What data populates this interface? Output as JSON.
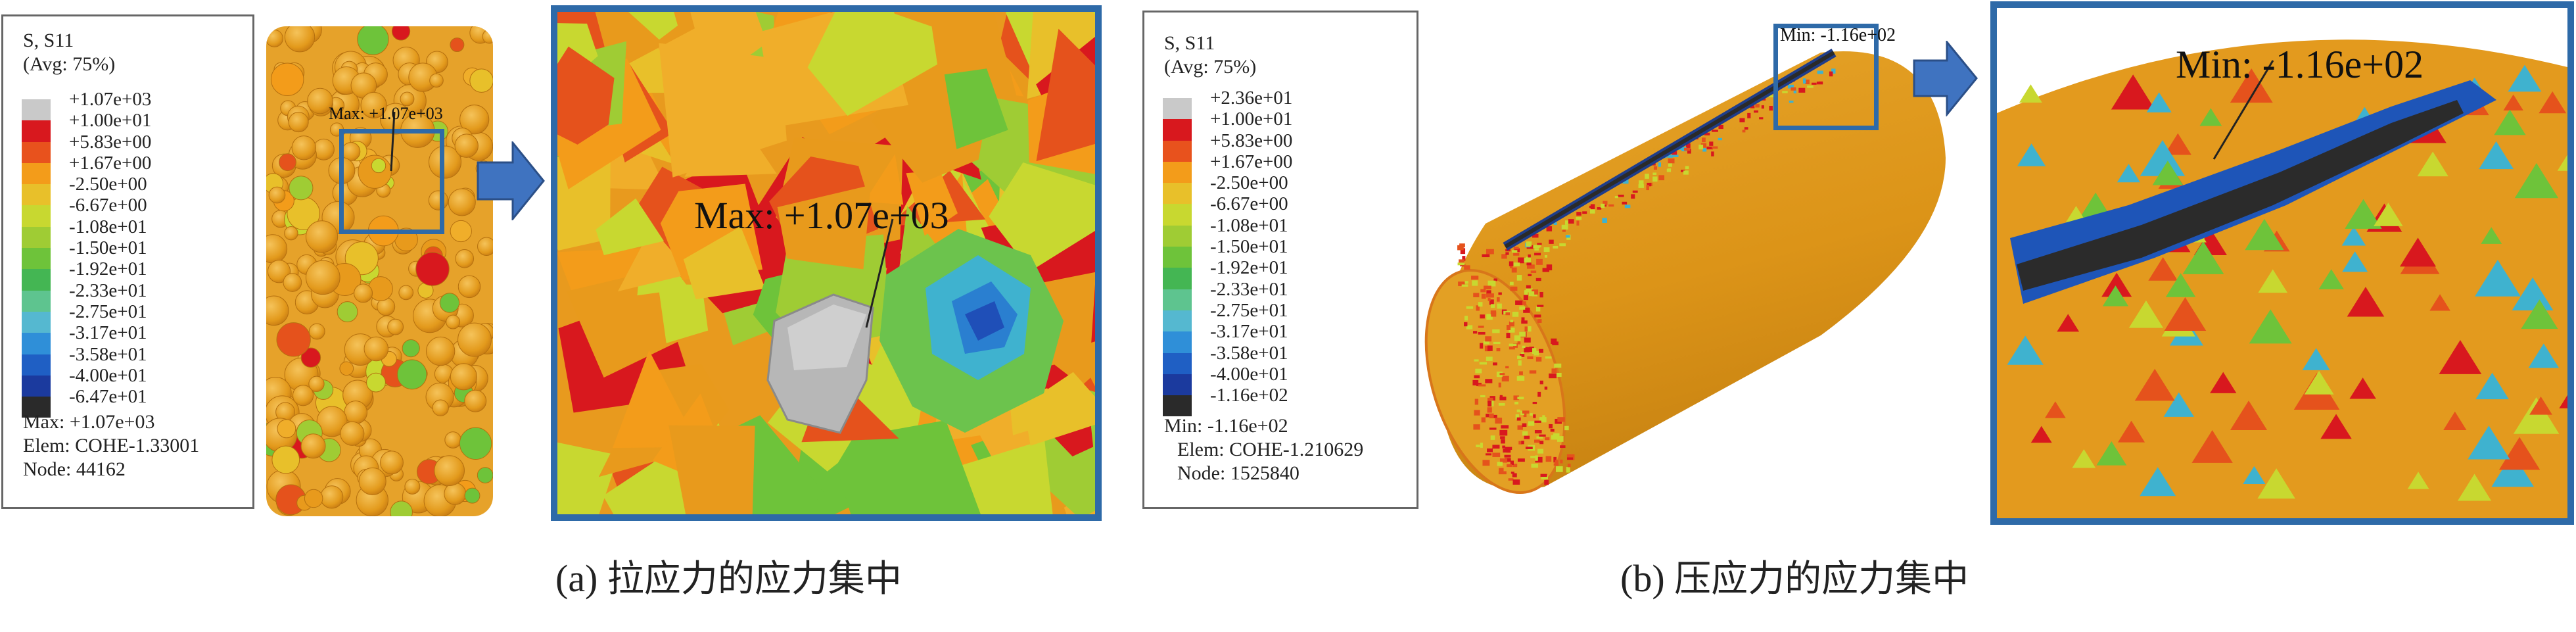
{
  "legend_colors": [
    "#c9c9c9",
    "#d8181e",
    "#e8521d",
    "#f39c1a",
    "#e8c02a",
    "#c8d830",
    "#9fcc34",
    "#6ec33a",
    "#44b653",
    "#5ec48f",
    "#55b8d0",
    "#2f8fd8",
    "#1f5fc4",
    "#1b3a9e",
    "#2a2a2a"
  ],
  "panel_a": {
    "legend": {
      "title": "S, S11",
      "subtitle": "(Avg: 75%)",
      "labels": [
        "+1.07e+03",
        "+1.00e+01",
        "+5.83e+00",
        "+1.67e+00",
        "-2.50e+00",
        "-6.67e+00",
        "-1.08e+01",
        "-1.50e+01",
        "-1.92e+01",
        "-2.33e+01",
        "-2.75e+01",
        "-3.17e+01",
        "-3.58e+01",
        "-4.00e+01",
        "-6.47e+01"
      ],
      "extreme": "Max: +1.07e+03",
      "elem": "Elem: COHE-1.33001",
      "node": "Node: 44162"
    },
    "small_annotation": "Max: +1.07e+03",
    "zoom_annotation": "Max: +1.07e+03",
    "caption_label": "(a)",
    "caption_text": "拉应力的应力集中"
  },
  "panel_b": {
    "legend": {
      "title": "S, S11",
      "subtitle": "(Avg: 75%)",
      "labels": [
        "+2.36e+01",
        "+1.00e+01",
        "+5.83e+00",
        "+1.67e+00",
        "-2.50e+00",
        "-6.67e+00",
        "-1.08e+01",
        "-1.50e+01",
        "-1.92e+01",
        "-2.33e+01",
        "-2.75e+01",
        "-3.17e+01",
        "-3.58e+01",
        "-4.00e+01",
        "-1.16e+02"
      ],
      "extreme": "Min: -1.16e+02",
      "elem": "Elem: COHE-1.210629",
      "node": "Node: 1525840"
    },
    "small_annotation": "Min: -1.16e+02",
    "zoom_annotation": "Min: -1.16e+02",
    "caption_label": "(b)",
    "caption_text": "压应力的应力集中"
  }
}
